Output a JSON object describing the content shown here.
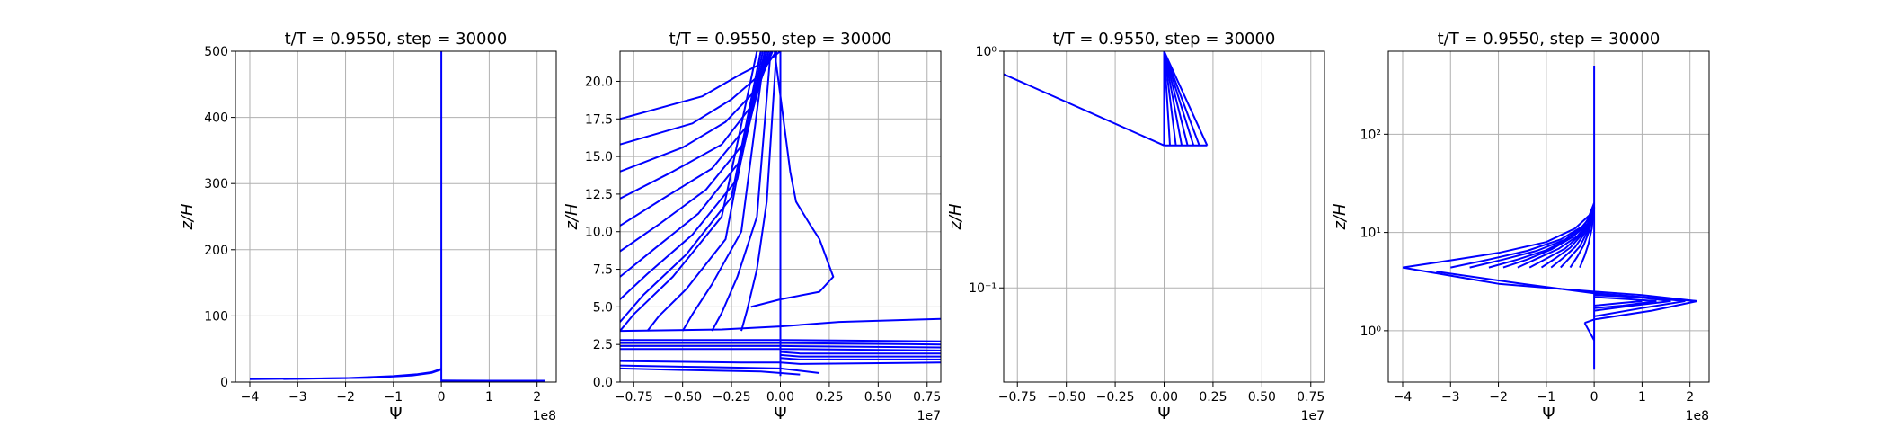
{
  "chart_data": [
    {
      "type": "line",
      "title": "t/T = 0.9550, step = 30000",
      "xlabel": "Ψ",
      "ylabel": "z/H",
      "x_offset_label": "1e8",
      "xlim": [
        -4.3,
        2.4
      ],
      "ylim": [
        0,
        500
      ],
      "yscale": "linear",
      "xticks": [
        -4,
        -3,
        -2,
        -1,
        0,
        1,
        2
      ],
      "xtick_labels": [
        "−4",
        "−3",
        "−2",
        "−1",
        "0",
        "1",
        "2"
      ],
      "yticks": [
        0,
        100,
        200,
        300,
        400,
        500
      ],
      "ytick_labels": [
        "0",
        "100",
        "200",
        "300",
        "400",
        "500"
      ],
      "grid": true,
      "color": "#0000ff",
      "series": [
        {
          "x": [
            0,
            0
          ],
          "y": [
            0.4,
            500
          ]
        },
        {
          "x": [
            -4.0,
            -2.0,
            -1.0,
            -0.5,
            -0.2,
            0
          ],
          "y": [
            4.4,
            6,
            9,
            12,
            15,
            20
          ]
        },
        {
          "x": [
            0,
            1.0,
            2.15,
            0
          ],
          "y": [
            2.2,
            2.1,
            2.0,
            1.9
          ]
        },
        {
          "x": [
            -3.3,
            -1.5,
            -0.6,
            -0.2,
            0
          ],
          "y": [
            4.6,
            6.5,
            10,
            14,
            19
          ]
        },
        {
          "x": [
            0,
            0.8,
            1.6,
            0
          ],
          "y": [
            2.2,
            2.1,
            2.0,
            1.9
          ]
        }
      ]
    },
    {
      "type": "line",
      "title": "t/T = 0.9550, step = 30000",
      "xlabel": "Ψ",
      "ylabel": "z/H",
      "x_offset_label": "1e7",
      "xlim": [
        -0.82,
        0.82
      ],
      "ylim": [
        0,
        22
      ],
      "yscale": "linear",
      "xticks": [
        -0.75,
        -0.5,
        -0.25,
        0,
        0.25,
        0.5,
        0.75
      ],
      "xtick_labels": [
        "−0.75",
        "−0.50",
        "−0.25",
        "0.00",
        "0.25",
        "0.50",
        "0.75"
      ],
      "yticks": [
        0,
        2.5,
        5,
        7.5,
        10,
        12.5,
        15,
        17.5,
        20
      ],
      "ytick_labels": [
        "0.0",
        "2.5",
        "5.0",
        "7.5",
        "10.0",
        "12.5",
        "15.0",
        "17.5",
        "20.0"
      ],
      "grid": true,
      "color": "#0000ff",
      "series": [
        {
          "x": [
            0,
            0
          ],
          "y": [
            0.4,
            22
          ]
        },
        {
          "x": [
            -0.82,
            -0.4,
            -0.2,
            -0.05,
            0
          ],
          "y": [
            17.5,
            19,
            20.5,
            21.5,
            22
          ]
        },
        {
          "x": [
            -0.82,
            -0.45,
            -0.25,
            -0.1,
            -0.02
          ],
          "y": [
            15.8,
            17.2,
            18.8,
            20.5,
            22
          ]
        },
        {
          "x": [
            -0.82,
            -0.5,
            -0.28,
            -0.12,
            -0.04
          ],
          "y": [
            14.0,
            15.6,
            17.3,
            19.5,
            22
          ]
        },
        {
          "x": [
            -0.82,
            -0.55,
            -0.3,
            -0.14,
            -0.05
          ],
          "y": [
            12.2,
            14.0,
            15.8,
            18.5,
            22
          ]
        },
        {
          "x": [
            -0.82,
            -0.6,
            -0.35,
            -0.16,
            -0.06
          ],
          "y": [
            10.4,
            12.2,
            14.2,
            17.2,
            22
          ]
        },
        {
          "x": [
            -0.82,
            -0.62,
            -0.38,
            -0.18,
            -0.07
          ],
          "y": [
            8.7,
            10.5,
            12.8,
            16.0,
            22
          ]
        },
        {
          "x": [
            -0.82,
            -0.65,
            -0.42,
            -0.2,
            -0.08
          ],
          "y": [
            7.0,
            8.8,
            11.2,
            14.8,
            22
          ]
        },
        {
          "x": [
            -0.82,
            -0.68,
            -0.45,
            -0.22,
            -0.09
          ],
          "y": [
            5.5,
            7.2,
            9.8,
            13.5,
            22
          ]
        },
        {
          "x": [
            -0.82,
            -0.7,
            -0.48,
            -0.25,
            -0.1
          ],
          "y": [
            4.0,
            5.8,
            8.5,
            12.3,
            22
          ]
        },
        {
          "x": [
            -0.82,
            -0.75,
            -0.55,
            -0.3,
            -0.12
          ],
          "y": [
            3.4,
            4.5,
            7.0,
            11.0,
            22
          ]
        },
        {
          "x": [
            -0.68,
            -0.62,
            -0.48,
            -0.28,
            -0.1
          ],
          "y": [
            3.4,
            4.4,
            6.2,
            9.5,
            22
          ]
        },
        {
          "x": [
            -0.5,
            -0.45,
            -0.35,
            -0.2,
            -0.08
          ],
          "y": [
            3.4,
            4.5,
            6.5,
            10.0,
            22
          ]
        },
        {
          "x": [
            -0.35,
            -0.3,
            -0.22,
            -0.12,
            -0.05
          ],
          "y": [
            3.4,
            4.6,
            7.0,
            11.0,
            22
          ]
        },
        {
          "x": [
            -0.2,
            -0.17,
            -0.12,
            -0.07,
            -0.02
          ],
          "y": [
            3.4,
            4.8,
            7.5,
            12.0,
            22
          ]
        },
        {
          "x": [
            -0.03,
            0.02,
            0.05,
            0.08,
            0.15,
            0.2,
            0.27,
            0.2,
            0.0,
            -0.15
          ],
          "y": [
            22,
            17,
            14,
            12,
            10.5,
            9.5,
            7.0,
            6.0,
            5.5,
            5.0
          ]
        },
        {
          "x": [
            -0.82,
            -0.3,
            0.0,
            0.3,
            0.82
          ],
          "y": [
            3.4,
            3.5,
            3.7,
            4.0,
            4.2
          ]
        },
        {
          "x": [
            -0.82,
            0.0,
            0.82
          ],
          "y": [
            2.8,
            2.8,
            2.7
          ]
        },
        {
          "x": [
            -0.82,
            0.0,
            0.82
          ],
          "y": [
            2.6,
            2.6,
            2.5
          ]
        },
        {
          "x": [
            -0.82,
            0.0,
            0.82
          ],
          "y": [
            2.4,
            2.4,
            2.3
          ]
        },
        {
          "x": [
            -0.82,
            0.0,
            0.82
          ],
          "y": [
            2.2,
            2.2,
            2.1
          ]
        },
        {
          "x": [
            0.0,
            0.1,
            0.82
          ],
          "y": [
            2.0,
            1.9,
            1.9
          ]
        },
        {
          "x": [
            0.0,
            0.1,
            0.82
          ],
          "y": [
            1.8,
            1.7,
            1.7
          ]
        },
        {
          "x": [
            0.0,
            0.1,
            0.82
          ],
          "y": [
            1.6,
            1.5,
            1.5
          ]
        },
        {
          "x": [
            -0.82,
            -0.2,
            0.0,
            0.1,
            0.82
          ],
          "y": [
            1.4,
            1.3,
            1.3,
            1.2,
            1.3
          ]
        },
        {
          "x": [
            -0.82,
            -0.4,
            0.0,
            0.2
          ],
          "y": [
            1.1,
            1.0,
            0.9,
            0.6
          ]
        },
        {
          "x": [
            -0.82,
            -0.5,
            -0.1,
            0.1
          ],
          "y": [
            0.9,
            0.8,
            0.7,
            0.5
          ]
        }
      ]
    },
    {
      "type": "line",
      "title": "t/T = 0.9550, step = 30000",
      "xlabel": "Ψ",
      "ylabel": "z/H",
      "x_offset_label": "1e7",
      "xlim": [
        -0.82,
        0.82
      ],
      "ylim": [
        0.04,
        1
      ],
      "yscale": "log",
      "xticks": [
        -0.75,
        -0.5,
        -0.25,
        0,
        0.25,
        0.5,
        0.75
      ],
      "xtick_labels": [
        "−0.75",
        "−0.50",
        "−0.25",
        "0.00",
        "0.25",
        "0.50",
        "0.75"
      ],
      "yticks": [
        0.1,
        1
      ],
      "ytick_labels": [
        "10⁻¹",
        "10⁰"
      ],
      "grid": true,
      "color": "#0000ff",
      "series": [
        {
          "x": [
            -0.82,
            0.0
          ],
          "y": [
            0.8,
            0.4
          ]
        },
        {
          "x": [
            0.0,
            0.0
          ],
          "y": [
            0.4,
            1.0
          ]
        },
        {
          "x": [
            0.0,
            0.03
          ],
          "y": [
            1.0,
            0.4
          ]
        },
        {
          "x": [
            0.0,
            0.06
          ],
          "y": [
            1.0,
            0.4
          ]
        },
        {
          "x": [
            0.0,
            0.09
          ],
          "y": [
            1.0,
            0.4
          ]
        },
        {
          "x": [
            0.0,
            0.12
          ],
          "y": [
            1.0,
            0.4
          ]
        },
        {
          "x": [
            0.0,
            0.15
          ],
          "y": [
            1.0,
            0.4
          ]
        },
        {
          "x": [
            0.0,
            0.18
          ],
          "y": [
            1.0,
            0.4
          ]
        },
        {
          "x": [
            0.0,
            0.22
          ],
          "y": [
            1.0,
            0.4
          ]
        },
        {
          "x": [
            0.0,
            0.22
          ],
          "y": [
            0.4,
            0.4
          ]
        }
      ]
    },
    {
      "type": "line",
      "title": "t/T = 0.9550, step = 30000",
      "xlabel": "Ψ",
      "ylabel": "z/H",
      "x_offset_label": "1e8",
      "xlim": [
        -4.3,
        2.4
      ],
      "ylim": [
        0.3,
        700
      ],
      "yscale": "log",
      "xticks": [
        -4,
        -3,
        -2,
        -1,
        0,
        1,
        2
      ],
      "xtick_labels": [
        "−4",
        "−3",
        "−2",
        "−1",
        "0",
        "1",
        "2"
      ],
      "yticks": [
        1,
        10,
        100
      ],
      "ytick_labels": [
        "10⁰",
        "10¹",
        "10²"
      ],
      "grid": true,
      "color": "#0000ff",
      "series": [
        {
          "x": [
            0,
            0
          ],
          "y": [
            0.4,
            500
          ]
        },
        {
          "x": [
            -4.0,
            -3.0,
            -2.0,
            -1.0,
            -0.4,
            -0.1,
            0
          ],
          "y": [
            4.4,
            5.2,
            6.2,
            8.0,
            11,
            15,
            20
          ]
        },
        {
          "x": [
            -3.0,
            -2.2,
            -1.4,
            -0.7,
            -0.25,
            -0.05,
            0
          ],
          "y": [
            4.4,
            5.3,
            6.5,
            8.5,
            11.5,
            15,
            20
          ]
        },
        {
          "x": [
            -2.6,
            -1.9,
            -1.2,
            -0.6,
            -0.2,
            0
          ],
          "y": [
            4.4,
            5.3,
            6.5,
            8.5,
            12,
            18
          ]
        },
        {
          "x": [
            -2.2,
            -1.6,
            -1.0,
            -0.5,
            -0.15,
            0
          ],
          "y": [
            4.4,
            5.3,
            6.6,
            8.8,
            12,
            18
          ]
        },
        {
          "x": [
            -1.9,
            -1.4,
            -0.9,
            -0.45,
            -0.12,
            0
          ],
          "y": [
            4.4,
            5.3,
            6.7,
            9.0,
            12.5,
            18
          ]
        },
        {
          "x": [
            -1.6,
            -1.2,
            -0.75,
            -0.35,
            -0.1,
            0
          ],
          "y": [
            4.4,
            5.4,
            6.8,
            9.2,
            13,
            18
          ]
        },
        {
          "x": [
            -1.35,
            -1.0,
            -0.6,
            -0.3,
            -0.08,
            0
          ],
          "y": [
            4.4,
            5.4,
            6.9,
            9.4,
            13,
            18
          ]
        },
        {
          "x": [
            -1.1,
            -0.8,
            -0.5,
            -0.25,
            -0.06,
            0
          ],
          "y": [
            4.4,
            5.5,
            7.0,
            9.6,
            13.5,
            18
          ]
        },
        {
          "x": [
            -0.9,
            -0.65,
            -0.4,
            -0.2,
            -0.05,
            0
          ],
          "y": [
            4.4,
            5.5,
            7.1,
            9.8,
            13.5,
            18
          ]
        },
        {
          "x": [
            -0.7,
            -0.5,
            -0.3,
            -0.15,
            -0.04,
            0
          ],
          "y": [
            4.4,
            5.6,
            7.2,
            10,
            14,
            18
          ]
        },
        {
          "x": [
            -0.5,
            -0.35,
            -0.22,
            -0.1,
            0
          ],
          "y": [
            4.4,
            5.7,
            7.4,
            10.5,
            18
          ]
        },
        {
          "x": [
            -0.3,
            -0.2,
            -0.12,
            -0.05,
            0
          ],
          "y": [
            4.4,
            5.8,
            7.6,
            11,
            18
          ]
        },
        {
          "x": [
            -4.0,
            -2.0,
            0.0,
            1.0,
            2.15
          ],
          "y": [
            4.4,
            3.0,
            2.5,
            2.3,
            2.0
          ]
        },
        {
          "x": [
            -3.3,
            -1.5,
            0.0,
            1.0,
            2.15
          ],
          "y": [
            4.0,
            3.0,
            2.4,
            2.2,
            2.0
          ]
        },
        {
          "x": [
            2.15,
            1.2,
            0.0,
            -0.2
          ],
          "y": [
            2.0,
            1.6,
            1.3,
            1.2
          ]
        },
        {
          "x": [
            1.9,
            1.0,
            0.0
          ],
          "y": [
            2.0,
            1.7,
            1.4
          ]
        },
        {
          "x": [
            1.6,
            0.8,
            0.0
          ],
          "y": [
            2.0,
            1.8,
            1.6
          ]
        },
        {
          "x": [
            1.3,
            0.6,
            0.0
          ],
          "y": [
            2.0,
            1.8,
            1.7
          ]
        },
        {
          "x": [
            1.0,
            0.5,
            0.0
          ],
          "y": [
            2.0,
            1.9,
            1.8
          ]
        },
        {
          "x": [
            0.0,
            1.0,
            1.9
          ],
          "y": [
            2.4,
            2.2,
            2.0
          ]
        },
        {
          "x": [
            0.0,
            0.9,
            1.6
          ],
          "y": [
            2.3,
            2.2,
            2.0
          ]
        },
        {
          "x": [
            0.0,
            0.7,
            1.3
          ],
          "y": [
            2.2,
            2.1,
            2.0
          ]
        },
        {
          "x": [
            -0.2,
            0.0
          ],
          "y": [
            1.2,
            0.8
          ]
        }
      ]
    }
  ]
}
